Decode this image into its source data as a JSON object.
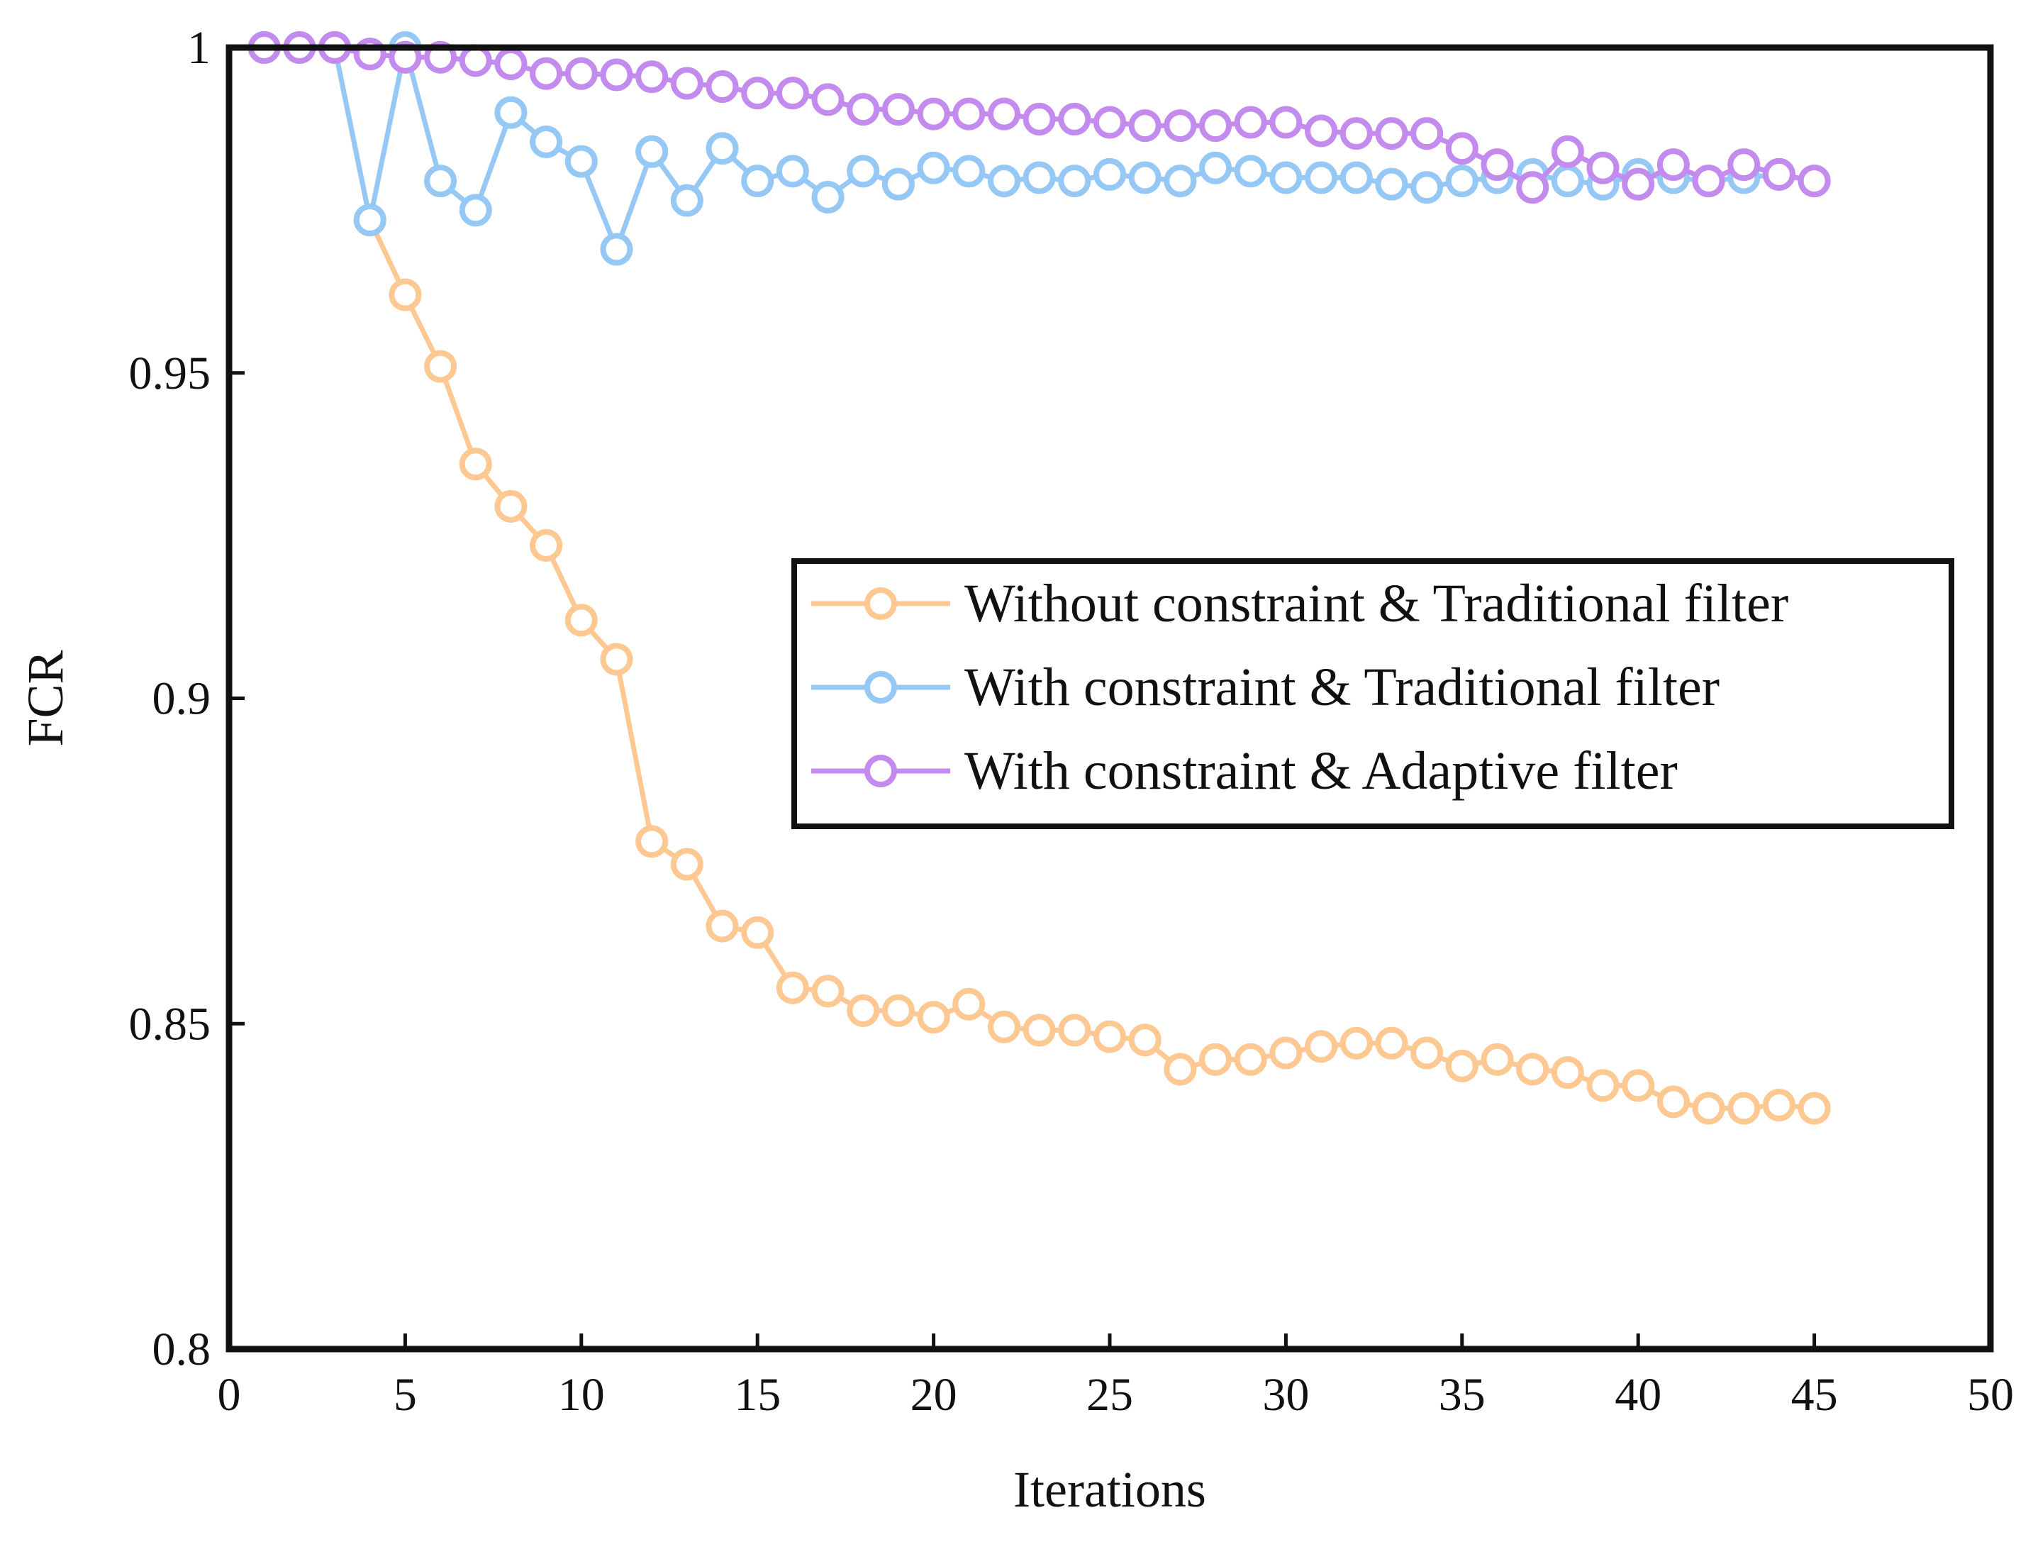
{
  "chart_data": {
    "type": "line",
    "title": "",
    "xlabel": "Iterations",
    "ylabel": "FCR",
    "xlim": [
      0,
      50
    ],
    "ylim": [
      0.8,
      1.0
    ],
    "xticks": [
      0,
      5,
      10,
      15,
      20,
      25,
      30,
      35,
      40,
      45,
      50
    ],
    "yticks": [
      0.8,
      0.85,
      0.9,
      0.95,
      1
    ],
    "xtick_labels": [
      "0",
      "5",
      "10",
      "15",
      "20",
      "25",
      "30",
      "35",
      "40",
      "45",
      "50"
    ],
    "ytick_labels": [
      "0.8",
      "0.85",
      "0.9",
      "0.95",
      "1"
    ],
    "grid": false,
    "legend_position": "center-right",
    "x": [
      1,
      2,
      3,
      4,
      5,
      6,
      7,
      8,
      9,
      10,
      11,
      12,
      13,
      14,
      15,
      16,
      17,
      18,
      19,
      20,
      21,
      22,
      23,
      24,
      25,
      26,
      27,
      28,
      29,
      30,
      31,
      32,
      33,
      34,
      35,
      36,
      37,
      38,
      39,
      40,
      41,
      42,
      43,
      44,
      45
    ],
    "series": [
      {
        "name": "Without constraint & Traditional filter",
        "color": "#FDC892",
        "values": [
          1.0,
          1.0,
          1.0,
          0.9735,
          0.962,
          0.951,
          0.936,
          0.9295,
          0.9235,
          0.912,
          0.906,
          0.878,
          0.8745,
          0.865,
          0.864,
          0.8555,
          0.855,
          0.852,
          0.852,
          0.851,
          0.853,
          0.8495,
          0.849,
          0.849,
          0.848,
          0.8475,
          0.843,
          0.8445,
          0.8445,
          0.8455,
          0.8465,
          0.847,
          0.847,
          0.8455,
          0.8435,
          0.8445,
          0.843,
          0.8425,
          0.8405,
          0.8405,
          0.838,
          0.837,
          0.837,
          0.8375,
          0.837
        ]
      },
      {
        "name": "With constraint & Traditional filter",
        "color": "#95C8F5",
        "values": [
          1.0,
          1.0,
          1.0,
          0.9735,
          1.0,
          0.9795,
          0.975,
          0.99,
          0.9855,
          0.9825,
          0.969,
          0.984,
          0.9765,
          0.9845,
          0.9795,
          0.981,
          0.977,
          0.981,
          0.979,
          0.9815,
          0.981,
          0.9795,
          0.98,
          0.9795,
          0.9805,
          0.98,
          0.9795,
          0.9815,
          0.981,
          0.98,
          0.98,
          0.98,
          0.979,
          0.9785,
          0.9795,
          0.98,
          0.9805,
          0.9795,
          0.979,
          0.9805,
          0.98,
          0.9795,
          0.98,
          0.9805,
          0.9795
        ]
      },
      {
        "name": "With constraint & Adaptive filter",
        "color": "#C48BEF",
        "values": [
          1.0,
          1.0,
          1.0,
          0.999,
          0.9985,
          0.9985,
          0.998,
          0.9975,
          0.996,
          0.996,
          0.9958,
          0.9955,
          0.9945,
          0.994,
          0.993,
          0.993,
          0.992,
          0.9905,
          0.9905,
          0.9898,
          0.9898,
          0.9898,
          0.989,
          0.989,
          0.9885,
          0.988,
          0.988,
          0.988,
          0.9885,
          0.9885,
          0.9872,
          0.9868,
          0.9868,
          0.9868,
          0.9845,
          0.982,
          0.9785,
          0.984,
          0.9815,
          0.979,
          0.982,
          0.9795,
          0.982,
          0.9805,
          0.9795
        ]
      }
    ]
  }
}
